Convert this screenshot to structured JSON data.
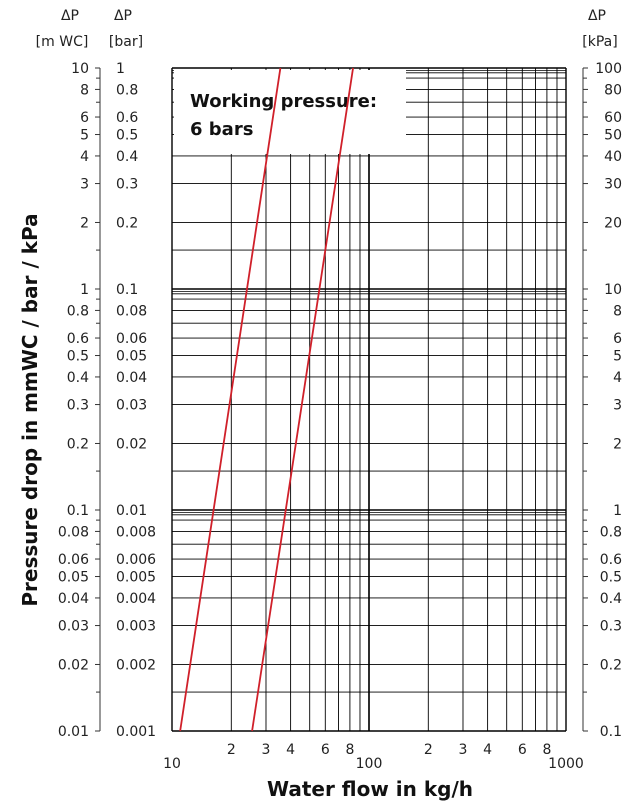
{
  "chart_data": {
    "type": "line",
    "annotation": [
      "Working pressure:",
      "6 bars"
    ],
    "xlabel": "Water flow in kg/h",
    "ylabel": "Pressure drop in mmWC / bar / kPa",
    "x_scale": "log",
    "y_scale": "log",
    "xlim": [
      10,
      1000
    ],
    "ylim_bar": [
      0.001,
      1
    ],
    "grid": true,
    "x_tick_labels": [
      {
        "value": 10,
        "label": "10"
      },
      {
        "value": 20,
        "label": "2"
      },
      {
        "value": 30,
        "label": "3"
      },
      {
        "value": 40,
        "label": "4"
      },
      {
        "value": 60,
        "label": "6"
      },
      {
        "value": 80,
        "label": "8"
      },
      {
        "value": 100,
        "label": "100"
      },
      {
        "value": 200,
        "label": "2"
      },
      {
        "value": 300,
        "label": "3"
      },
      {
        "value": 400,
        "label": "4"
      },
      {
        "value": 600,
        "label": "6"
      },
      {
        "value": 800,
        "label": "8"
      },
      {
        "value": 1000,
        "label": "1000"
      }
    ],
    "left_axis_mwc": {
      "header": [
        "ΔP",
        "[m WC]"
      ],
      "ticks": [
        {
          "bar": 1,
          "label": "10"
        },
        {
          "bar": 0.8,
          "label": "8"
        },
        {
          "bar": 0.6,
          "label": "6"
        },
        {
          "bar": 0.5,
          "label": "5"
        },
        {
          "bar": 0.4,
          "label": "4"
        },
        {
          "bar": 0.3,
          "label": "3"
        },
        {
          "bar": 0.2,
          "label": "2"
        },
        {
          "bar": 0.1,
          "label": "1"
        },
        {
          "bar": 0.08,
          "label": "0.8"
        },
        {
          "bar": 0.06,
          "label": "0.6"
        },
        {
          "bar": 0.05,
          "label": "0.5"
        },
        {
          "bar": 0.04,
          "label": "0.4"
        },
        {
          "bar": 0.03,
          "label": "0.3"
        },
        {
          "bar": 0.02,
          "label": "0.2"
        },
        {
          "bar": 0.01,
          "label": "0.1"
        },
        {
          "bar": 0.008,
          "label": "0.08"
        },
        {
          "bar": 0.006,
          "label": "0.06"
        },
        {
          "bar": 0.005,
          "label": "0.05"
        },
        {
          "bar": 0.004,
          "label": "0.04"
        },
        {
          "bar": 0.003,
          "label": "0.03"
        },
        {
          "bar": 0.002,
          "label": "0.02"
        },
        {
          "bar": 0.001,
          "label": "0.01"
        }
      ]
    },
    "left_axis_bar": {
      "header": [
        "ΔP",
        "[bar]"
      ],
      "ticks": [
        {
          "bar": 1,
          "label": "1"
        },
        {
          "bar": 0.8,
          "label": "0.8"
        },
        {
          "bar": 0.6,
          "label": "0.6"
        },
        {
          "bar": 0.5,
          "label": "0.5"
        },
        {
          "bar": 0.4,
          "label": "0.4"
        },
        {
          "bar": 0.3,
          "label": "0.3"
        },
        {
          "bar": 0.2,
          "label": "0.2"
        },
        {
          "bar": 0.1,
          "label": "0.1"
        },
        {
          "bar": 0.08,
          "label": "0.08"
        },
        {
          "bar": 0.06,
          "label": "0.06"
        },
        {
          "bar": 0.05,
          "label": "0.05"
        },
        {
          "bar": 0.04,
          "label": "0.04"
        },
        {
          "bar": 0.03,
          "label": "0.03"
        },
        {
          "bar": 0.02,
          "label": "0.02"
        },
        {
          "bar": 0.01,
          "label": "0.01"
        },
        {
          "bar": 0.008,
          "label": "0.008"
        },
        {
          "bar": 0.006,
          "label": "0.006"
        },
        {
          "bar": 0.005,
          "label": "0.005"
        },
        {
          "bar": 0.004,
          "label": "0.004"
        },
        {
          "bar": 0.003,
          "label": "0.003"
        },
        {
          "bar": 0.002,
          "label": "0.002"
        },
        {
          "bar": 0.001,
          "label": "0.001"
        }
      ]
    },
    "right_axis_kpa": {
      "header": [
        "ΔP",
        "[kPa]"
      ],
      "ticks": [
        {
          "bar": 1,
          "label": "100"
        },
        {
          "bar": 0.8,
          "label": "80"
        },
        {
          "bar": 0.6,
          "label": "60"
        },
        {
          "bar": 0.5,
          "label": "50"
        },
        {
          "bar": 0.4,
          "label": "40"
        },
        {
          "bar": 0.3,
          "label": "30"
        },
        {
          "bar": 0.2,
          "label": "20"
        },
        {
          "bar": 0.1,
          "label": "10"
        },
        {
          "bar": 0.08,
          "label": "8"
        },
        {
          "bar": 0.06,
          "label": "6"
        },
        {
          "bar": 0.05,
          "label": "5"
        },
        {
          "bar": 0.04,
          "label": "4"
        },
        {
          "bar": 0.03,
          "label": "3"
        },
        {
          "bar": 0.02,
          "label": "2"
        },
        {
          "bar": 0.01,
          "label": "1"
        },
        {
          "bar": 0.008,
          "label": "0.8"
        },
        {
          "bar": 0.006,
          "label": "0.6"
        },
        {
          "bar": 0.005,
          "label": "0.5"
        },
        {
          "bar": 0.004,
          "label": "0.4"
        },
        {
          "bar": 0.003,
          "label": "0.3"
        },
        {
          "bar": 0.002,
          "label": "0.2"
        },
        {
          "bar": 0.001,
          "label": "0.1"
        }
      ]
    },
    "series": [
      {
        "color": "#d0202a",
        "x": [
          11,
          35.5
        ],
        "y_bar": [
          0.001,
          1
        ]
      },
      {
        "color": "#d0202a",
        "x": [
          25.5,
          83
        ],
        "y_bar": [
          0.001,
          1
        ]
      }
    ],
    "colors": {
      "grid": "#000000",
      "line": "#d0202a",
      "text": "#222222"
    }
  }
}
